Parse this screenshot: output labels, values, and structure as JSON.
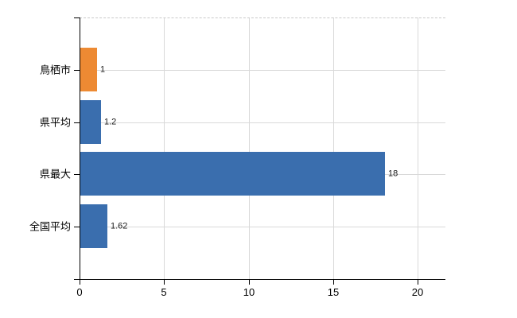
{
  "chart_data": {
    "type": "bar",
    "orientation": "horizontal",
    "title": "",
    "categories": [
      "鳥栖市",
      "県平均",
      "県最大",
      "全国平均"
    ],
    "values": [
      1,
      1.2,
      18,
      1.62
    ],
    "value_labels": [
      "1",
      "1.2",
      "18",
      "1.62"
    ],
    "bar_colors": [
      "#ed8a33",
      "#3a6eae",
      "#3a6eae",
      "#3a6eae"
    ],
    "highlight_category": "鳥栖市",
    "highlight_color": "#ed8a33",
    "default_bar_color": "#3a6eae",
    "x_ticks": [
      {
        "value": 0,
        "label": "0"
      },
      {
        "value": 5,
        "label": "5"
      },
      {
        "value": 10,
        "label": "10"
      },
      {
        "value": 15,
        "label": "15"
      },
      {
        "value": 20,
        "label": "20"
      }
    ],
    "xlim": [
      0,
      21.65
    ],
    "xlabel": "",
    "ylabel": "",
    "grid": true,
    "gridline_color": "#d9d9d9",
    "top_border_style": "dashed",
    "axis_color": "#000000",
    "legend": null
  }
}
